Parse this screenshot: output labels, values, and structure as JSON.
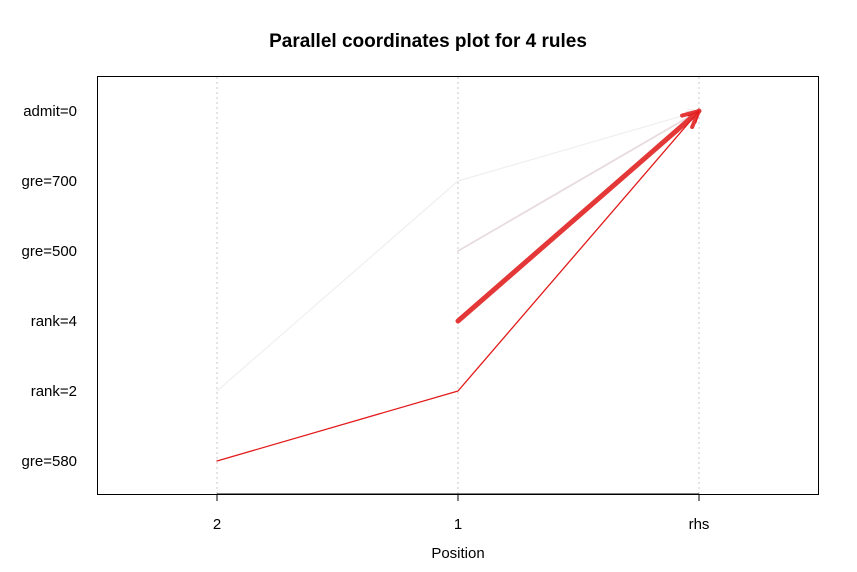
{
  "chart_data": {
    "type": "line",
    "subtype": "parallel-coordinates",
    "title": "Parallel coordinates plot for 4 rules",
    "xlabel": "Position",
    "ylabel": "",
    "categories": [
      "2",
      "1",
      "rhs"
    ],
    "item_labels": [
      "admit=0",
      "gre=700",
      "gre=500",
      "rank=4",
      "rank=2",
      "gre=580"
    ],
    "grid": true,
    "series": [
      {
        "values": [
          "rank=2",
          "gre=700",
          "admit=0"
        ],
        "color": "#f2eeee",
        "width": 1.2,
        "emphasis": 0.1
      },
      {
        "values": [
          null,
          "gre=500",
          "admit=0"
        ],
        "color": "#e8dbe0",
        "width": 1.8,
        "emphasis": 0.3
      },
      {
        "values": [
          null,
          "rank=4",
          "admit=0"
        ],
        "color": "#e43737",
        "width": 5,
        "emphasis": 1.0
      },
      {
        "values": [
          "gre=580",
          "rank=2",
          "admit=0"
        ],
        "color": "#e31a1a",
        "width": 1.3,
        "emphasis": 0.8
      }
    ]
  }
}
